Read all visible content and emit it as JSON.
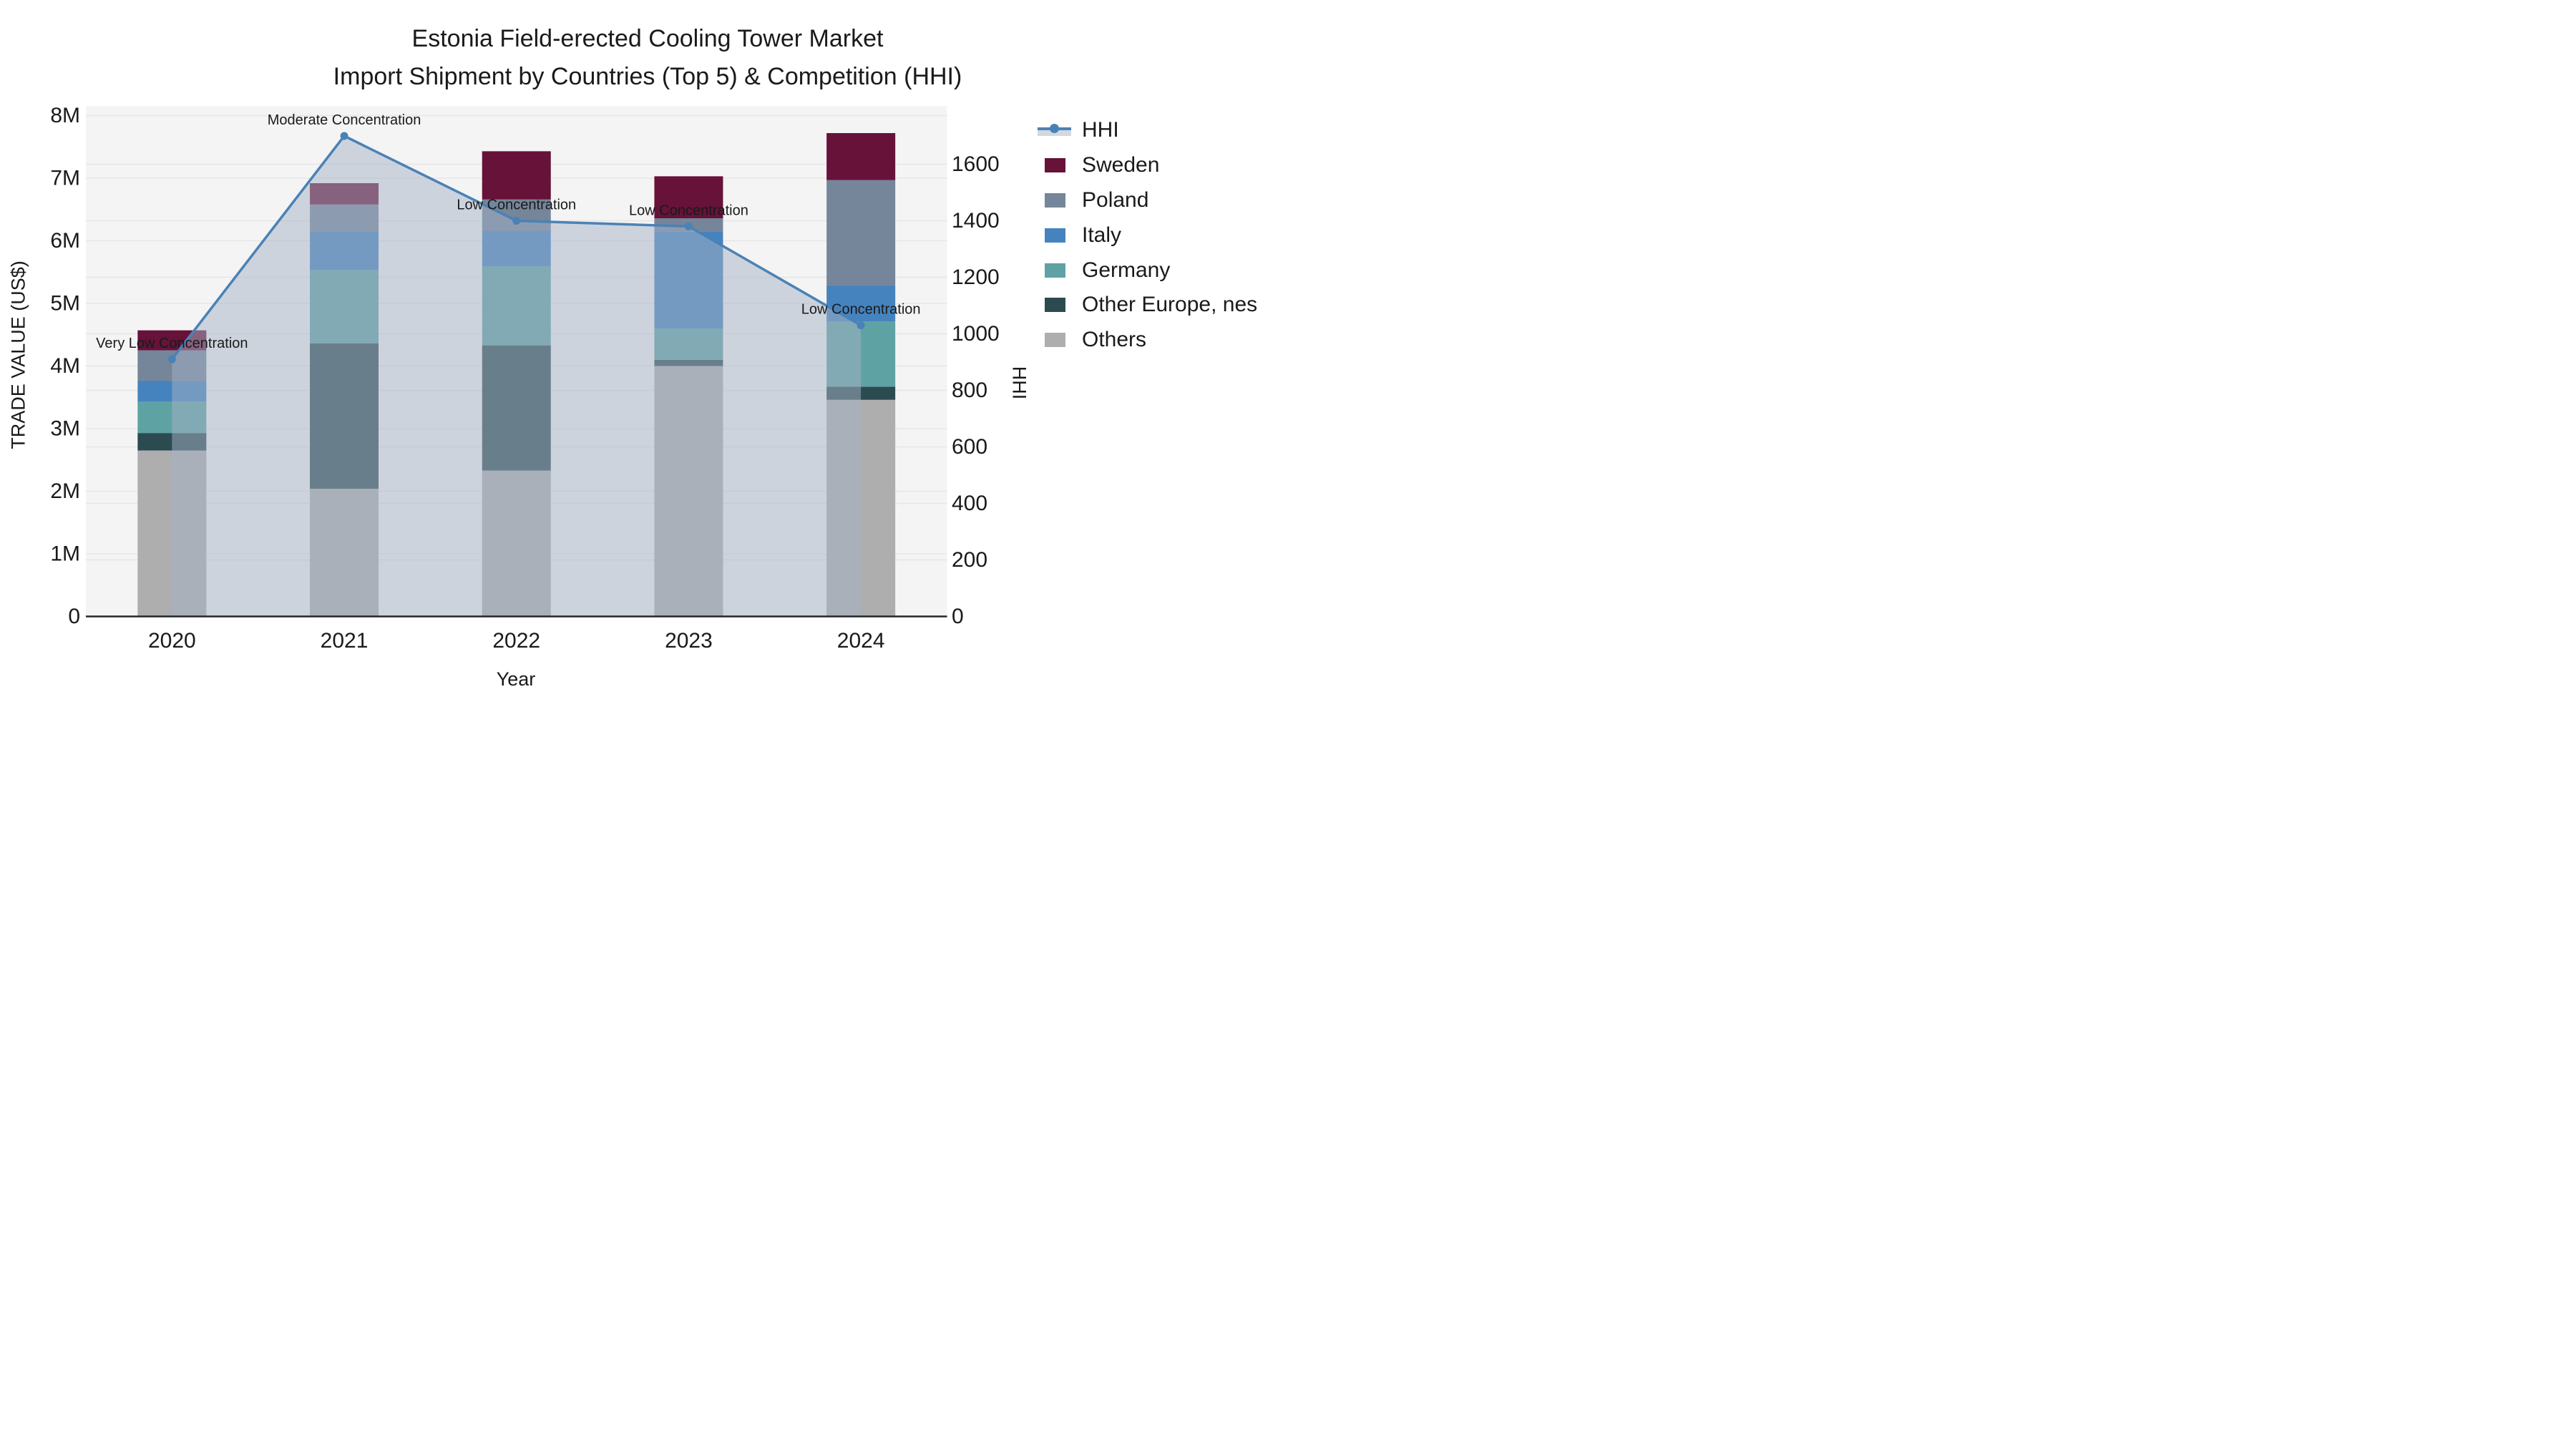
{
  "title": {
    "line1": "Estonia Field-erected Cooling Tower Market",
    "line2": "Import Shipment by Countries (Top 5) & Competition (HHI)"
  },
  "chart_data": {
    "type": "bar",
    "subtype": "stacked-bars-with-hhi-line-and-area",
    "title": "Estonia Field-erected Cooling Tower Market Import Shipment by Countries (Top 5) & Competition (HHI)",
    "categories": [
      "2020",
      "2021",
      "2022",
      "2023",
      "2024"
    ],
    "bar_value_unit": "million US$",
    "series": [
      {
        "name": "Others",
        "color": "#AEAEAE",
        "values": [
          2.65,
          2.04,
          2.33,
          4.0,
          3.46
        ]
      },
      {
        "name": "Other Europe, nes",
        "color": "#2C4B50",
        "values": [
          0.28,
          2.32,
          2.0,
          0.1,
          0.21
        ]
      },
      {
        "name": "Germany",
        "color": "#5FA2A4",
        "values": [
          0.5,
          1.17,
          1.26,
          0.5,
          1.04
        ]
      },
      {
        "name": "Italy",
        "color": "#4583BE",
        "values": [
          0.33,
          0.62,
          0.57,
          1.55,
          0.58
        ]
      },
      {
        "name": "Poland",
        "color": "#75859A",
        "values": [
          0.49,
          0.43,
          0.5,
          0.21,
          1.68
        ]
      },
      {
        "name": "Sweden",
        "color": "#661239",
        "values": [
          0.32,
          0.34,
          0.77,
          0.67,
          0.75
        ]
      }
    ],
    "bar_totals_millions": [
      4.57,
      6.92,
      7.43,
      7.03,
      7.72
    ],
    "line_series": {
      "name": "HHI",
      "color": "#4A82B6",
      "fill_color": "#A6B1C6",
      "fill_opacity": 0.5,
      "values": [
        910,
        1700,
        1400,
        1380,
        1030
      ]
    },
    "annotations": [
      {
        "category": "2020",
        "label": "Very Low Concentration"
      },
      {
        "category": "2021",
        "label": "Moderate Concentration"
      },
      {
        "category": "2022",
        "label": "Low Concentration"
      },
      {
        "category": "2023",
        "label": "Low Concentration"
      },
      {
        "category": "2024",
        "label": "Low Concentration"
      }
    ],
    "xlabel": "Year",
    "ylabel_left": "TRADE VALUE (US$)",
    "ylabel_right": "HHI",
    "yticks_left_labels": [
      "0",
      "1M",
      "2M",
      "3M",
      "4M",
      "5M",
      "6M",
      "7M",
      "8M"
    ],
    "ylim_left_millions": [
      0,
      8
    ],
    "yticks_right": [
      0,
      200,
      400,
      600,
      800,
      1000,
      1200,
      1400,
      1600
    ],
    "ylim_right": [
      0,
      1700
    ],
    "grid": true,
    "legend_position": "right",
    "legend": [
      {
        "label": "HHI",
        "type": "line",
        "color": "#4A82B6"
      },
      {
        "label": "Sweden",
        "type": "patch",
        "color": "#661239"
      },
      {
        "label": "Poland",
        "type": "patch",
        "color": "#75859A"
      },
      {
        "label": "Italy",
        "type": "patch",
        "color": "#4583BE"
      },
      {
        "label": "Germany",
        "type": "patch",
        "color": "#5FA2A4"
      },
      {
        "label": "Other Europe, nes",
        "type": "patch",
        "color": "#2C4B50"
      },
      {
        "label": "Others",
        "type": "patch",
        "color": "#AEAEAE"
      }
    ]
  },
  "colors": {
    "plot_bg": "#F4F4F4",
    "grid": "#E6E6E6",
    "axis_line": "#262626",
    "text": "#1A1A1A"
  }
}
